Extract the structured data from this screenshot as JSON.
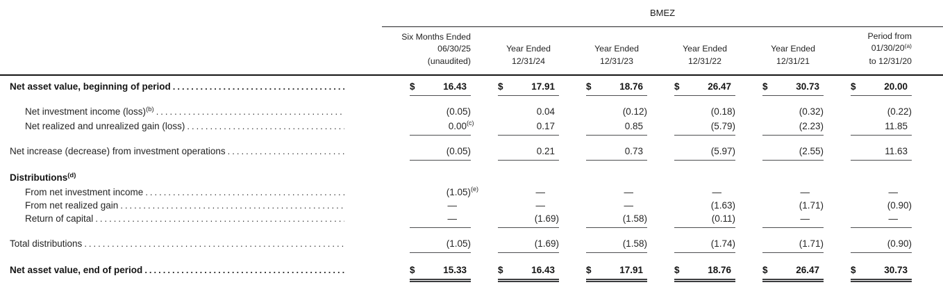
{
  "table": {
    "fund": "BMEZ",
    "colors": {
      "text": "#242424",
      "thick_rule": "#141414",
      "thin_rule": "#4c4d4f"
    },
    "columns": [
      {
        "align": "right",
        "lines": [
          "Six Months Ended",
          "06/30/25",
          "(unaudited)"
        ]
      },
      {
        "align": "center",
        "lines": [
          "Year Ended",
          "12/31/24"
        ]
      },
      {
        "align": "center",
        "lines": [
          "Year Ended",
          "12/31/23"
        ]
      },
      {
        "align": "center",
        "lines": [
          "Year Ended",
          "12/31/22"
        ]
      },
      {
        "align": "center",
        "lines": [
          "Year Ended",
          "12/31/21"
        ]
      },
      {
        "align": "right",
        "lines": [
          "Period from",
          {
            "text": "01/30/20",
            "sup": "(a)"
          },
          "to 12/31/20"
        ]
      }
    ],
    "rows": [
      {
        "label": "Net asset value, beginning of period",
        "style": "bold",
        "indent": 0,
        "leader": true,
        "dollar": true,
        "space": "sm",
        "rule": "single",
        "values": [
          "16.43",
          "17.91",
          "18.76",
          "26.47",
          "30.73",
          "20.00"
        ]
      },
      {
        "label": "Net investment income (loss)",
        "label_sup": "(b)",
        "indent": 1,
        "leader": true,
        "space": "md",
        "rule": "none",
        "values": [
          "(0.05)",
          "0.04",
          "(0.12)",
          "(0.18)",
          "(0.32)",
          "(0.22)"
        ]
      },
      {
        "label": "Net realized and unrealized gain (loss)",
        "indent": 1,
        "leader": true,
        "rule": "single",
        "values": [
          {
            "text": "0.00",
            "sup": "(c)"
          },
          "0.17",
          "0.85",
          "(5.79)",
          "(2.23)",
          "11.85"
        ]
      },
      {
        "label": "Net increase (decrease) from investment operations",
        "indent": 0,
        "leader": true,
        "space": "md",
        "rule": "single",
        "values": [
          "(0.05)",
          "0.21",
          "0.73",
          "(5.97)",
          "(2.55)",
          "11.63"
        ]
      },
      {
        "label": "Distributions",
        "label_sup": "(d)",
        "style": "bold",
        "indent": 0,
        "leader": false,
        "space": "lg",
        "values": null
      },
      {
        "label": "From net investment income",
        "indent": 1,
        "leader": true,
        "rule": "none",
        "values": [
          {
            "text": "(1.05)",
            "sup": "(e)"
          },
          "—",
          "—",
          "—",
          "—",
          "—"
        ]
      },
      {
        "label": "From net realized gain",
        "indent": 1,
        "leader": true,
        "rule": "none",
        "values": [
          "—",
          "—",
          "—",
          "(1.63)",
          "(1.71)",
          "(0.90)"
        ]
      },
      {
        "label": "Return of capital",
        "indent": 1,
        "leader": true,
        "rule": "single",
        "values": [
          "—",
          "(1.69)",
          "(1.58)",
          "(0.11)",
          "—",
          "—"
        ]
      },
      {
        "label": "Total distributions",
        "indent": 0,
        "leader": true,
        "space": "md",
        "rule": "single",
        "values": [
          "(1.05)",
          "(1.69)",
          "(1.58)",
          "(1.74)",
          "(1.71)",
          "(0.90)"
        ]
      },
      {
        "label": "Net asset value, end of period",
        "style": "bold",
        "indent": 0,
        "leader": true,
        "dollar": true,
        "space": "lg",
        "rule": "double",
        "values": [
          "15.33",
          "16.43",
          "17.91",
          "18.76",
          "26.47",
          "30.73"
        ]
      }
    ]
  }
}
